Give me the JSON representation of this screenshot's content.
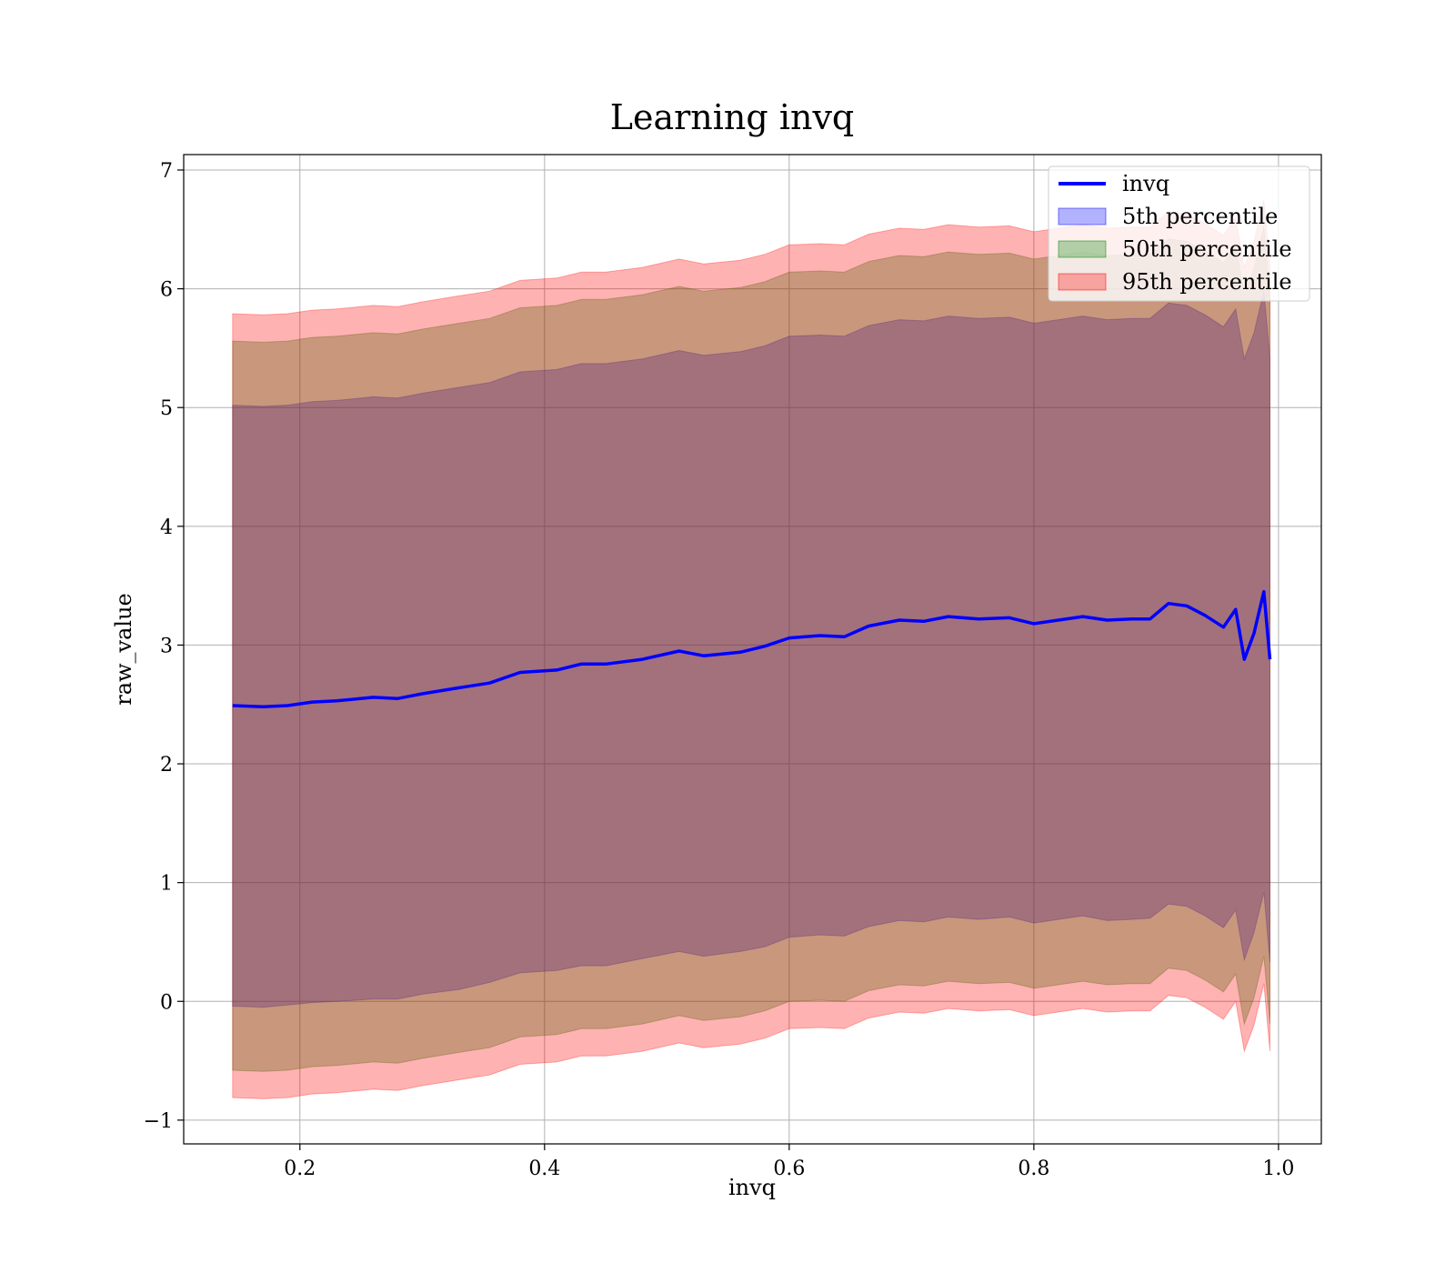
{
  "chart_data": {
    "type": "area",
    "title": "Learning invq",
    "xlabel": "invq",
    "ylabel": "raw_value",
    "xlim": [
      0.105,
      1.035
    ],
    "ylim": [
      -1.2,
      7.13
    ],
    "xticks": [
      0.2,
      0.4,
      0.6,
      0.8,
      1.0
    ],
    "xtick_labels": [
      "0.2",
      "0.4",
      "0.6",
      "0.8",
      "1.0"
    ],
    "yticks": [
      -1,
      0,
      1,
      2,
      3,
      4,
      5,
      6,
      7
    ],
    "ytick_labels": [
      "−1",
      "0",
      "1",
      "2",
      "3",
      "4",
      "5",
      "6",
      "7"
    ],
    "grid": true,
    "legend_position": "top-right",
    "x": [
      0.145,
      0.17,
      0.19,
      0.21,
      0.23,
      0.26,
      0.28,
      0.3,
      0.33,
      0.355,
      0.38,
      0.41,
      0.43,
      0.45,
      0.48,
      0.51,
      0.53,
      0.56,
      0.58,
      0.6,
      0.625,
      0.645,
      0.665,
      0.69,
      0.71,
      0.73,
      0.755,
      0.78,
      0.8,
      0.82,
      0.84,
      0.86,
      0.88,
      0.895,
      0.91,
      0.925,
      0.94,
      0.955,
      0.965,
      0.972,
      0.98,
      0.988,
      0.993
    ],
    "series": [
      {
        "name": "invq",
        "kind": "line",
        "color": "#0000ff",
        "values": [
          2.49,
          2.48,
          2.49,
          2.52,
          2.53,
          2.56,
          2.55,
          2.59,
          2.64,
          2.68,
          2.77,
          2.79,
          2.84,
          2.84,
          2.88,
          2.95,
          2.91,
          2.94,
          2.99,
          3.06,
          3.08,
          3.07,
          3.16,
          3.21,
          3.2,
          3.24,
          3.22,
          3.23,
          3.18,
          3.21,
          3.24,
          3.21,
          3.22,
          3.22,
          3.35,
          3.33,
          3.25,
          3.15,
          3.3,
          2.88,
          3.1,
          3.45,
          2.88
        ]
      },
      {
        "name": "5th percentile",
        "kind": "band",
        "color": "#0000ff",
        "opacity": 0.3,
        "lower": [
          -0.04,
          -0.05,
          -0.03,
          -0.01,
          0.0,
          0.02,
          0.02,
          0.06,
          0.1,
          0.16,
          0.24,
          0.26,
          0.3,
          0.3,
          0.36,
          0.42,
          0.38,
          0.42,
          0.46,
          0.54,
          0.56,
          0.55,
          0.63,
          0.68,
          0.67,
          0.71,
          0.69,
          0.71,
          0.66,
          0.69,
          0.72,
          0.68,
          0.69,
          0.7,
          0.82,
          0.8,
          0.72,
          0.62,
          0.77,
          0.35,
          0.58,
          0.92,
          0.33
        ],
        "upper": [
          5.02,
          5.01,
          5.02,
          5.05,
          5.06,
          5.09,
          5.08,
          5.12,
          5.17,
          5.21,
          5.3,
          5.32,
          5.37,
          5.37,
          5.41,
          5.48,
          5.44,
          5.47,
          5.52,
          5.6,
          5.61,
          5.6,
          5.69,
          5.74,
          5.73,
          5.77,
          5.75,
          5.76,
          5.71,
          5.74,
          5.77,
          5.74,
          5.75,
          5.75,
          5.88,
          5.86,
          5.78,
          5.68,
          5.83,
          5.41,
          5.63,
          5.98,
          5.42
        ]
      },
      {
        "name": "50th percentile",
        "kind": "band",
        "color": "#008000",
        "opacity": 0.3,
        "lower": [
          -0.58,
          -0.59,
          -0.58,
          -0.55,
          -0.54,
          -0.51,
          -0.52,
          -0.48,
          -0.43,
          -0.39,
          -0.3,
          -0.28,
          -0.23,
          -0.23,
          -0.19,
          -0.12,
          -0.16,
          -0.13,
          -0.08,
          0.0,
          0.01,
          0.0,
          0.09,
          0.14,
          0.13,
          0.17,
          0.15,
          0.16,
          0.11,
          0.14,
          0.17,
          0.14,
          0.15,
          0.15,
          0.28,
          0.26,
          0.18,
          0.08,
          0.23,
          -0.19,
          0.03,
          0.38,
          -0.19
        ],
        "upper": [
          5.56,
          5.55,
          5.56,
          5.59,
          5.6,
          5.63,
          5.62,
          5.66,
          5.71,
          5.75,
          5.84,
          5.86,
          5.91,
          5.91,
          5.95,
          6.02,
          5.98,
          6.01,
          6.06,
          6.14,
          6.15,
          6.14,
          6.23,
          6.28,
          6.27,
          6.31,
          6.29,
          6.3,
          6.25,
          6.28,
          6.31,
          6.28,
          6.29,
          6.29,
          6.42,
          6.4,
          6.32,
          6.22,
          6.37,
          5.95,
          6.17,
          6.52,
          5.95
        ]
      },
      {
        "name": "95th percentile",
        "kind": "band",
        "color": "#ff0000",
        "opacity": 0.3,
        "lower": [
          -0.81,
          -0.82,
          -0.81,
          -0.78,
          -0.77,
          -0.74,
          -0.75,
          -0.71,
          -0.66,
          -0.62,
          -0.53,
          -0.51,
          -0.46,
          -0.46,
          -0.42,
          -0.35,
          -0.39,
          -0.36,
          -0.31,
          -0.23,
          -0.22,
          -0.23,
          -0.14,
          -0.09,
          -0.1,
          -0.06,
          -0.08,
          -0.07,
          -0.12,
          -0.09,
          -0.06,
          -0.09,
          -0.08,
          -0.08,
          0.05,
          0.03,
          -0.05,
          -0.15,
          0.0,
          -0.42,
          -0.2,
          0.15,
          -0.42
        ],
        "upper": [
          5.79,
          5.78,
          5.79,
          5.82,
          5.83,
          5.86,
          5.85,
          5.89,
          5.94,
          5.98,
          6.07,
          6.09,
          6.14,
          6.14,
          6.18,
          6.25,
          6.21,
          6.24,
          6.29,
          6.37,
          6.38,
          6.37,
          6.46,
          6.51,
          6.5,
          6.54,
          6.52,
          6.53,
          6.48,
          6.51,
          6.54,
          6.51,
          6.52,
          6.52,
          6.65,
          6.63,
          6.55,
          6.45,
          6.6,
          6.18,
          6.4,
          6.75,
          6.18
        ]
      }
    ]
  }
}
